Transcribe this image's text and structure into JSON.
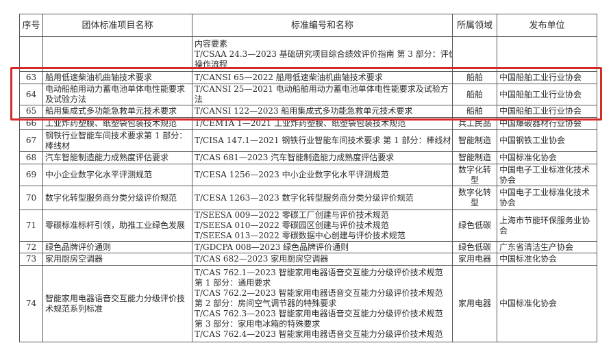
{
  "header": {
    "no": "序号",
    "project": "团体标准项目名称",
    "standard": "标准编号和名称",
    "field": "所属领域",
    "publisher": "发布单位"
  },
  "rows": [
    {
      "no": "",
      "project": "",
      "standards": [
        "内容要素",
        "T/CSAA 24.3—2023 基础研究项目综合绩效评价指南 第 3 部分：评价",
        "操作流程"
      ],
      "field": "",
      "publisher": ""
    },
    {
      "no": "63",
      "project": "船用低速柴油机曲轴技术要求",
      "standards": [
        "T/CANSI 65—2022 船用低速柴油机曲轴技术要求"
      ],
      "field": "船舶",
      "publisher": "中国船舶工业行业协会"
    },
    {
      "no": "64",
      "project": "电动船舶用动力蓄电池单体电性能要求及试验方法",
      "standards": [
        "T/CANSI 25—2021 电动船舶用动力蓄电池单体电性能要求及试验方",
        "法"
      ],
      "field": "船舶",
      "publisher": "中国船舶工业行业协会"
    },
    {
      "no": "65",
      "project": "船用集成式多功能急救单元技术要求",
      "standards": [
        "T/CANSI 122—2023 船用集成式多功能急救单元技术要求"
      ],
      "field": "船舶",
      "publisher": "中国船舶工业行业协会"
    },
    {
      "no": "66",
      "project": "工业炸药塑膜、纸塑袋包装技术规范",
      "standards": [
        "T/CEMTA 1—2021 工业炸药塑膜、纸塑袋包装技术规范"
      ],
      "field": "兵工民品",
      "publisher": "中国爆破器材行业协会"
    },
    {
      "no": "67",
      "project": "钢铁行业智能车间技术要求第 1 部分：棒线材",
      "standards": [
        "T/CISA 147.1—2021 钢铁行业智能车间技术要求 第 1 部分：棒线材"
      ],
      "field": "智能制造",
      "publisher": "中国钢铁工业协会"
    },
    {
      "no": "68",
      "project": "汽车智能制造能力成熟度评估要求",
      "standards": [
        "T/CAS 681—2023 汽车智能制造能力成熟度评估要求"
      ],
      "field": "智能制造",
      "publisher": "中国标准化协会"
    },
    {
      "no": "69",
      "project": "中小企业数字化水平评测规范",
      "standards": [
        "T/CESA 1256—2023 中小企业数字化水平评测规范"
      ],
      "field": "数字化转型",
      "publisher": "中国电子工业标准化技术协会"
    },
    {
      "no": "70",
      "project": "数字化转型服务商分类分级评价规范",
      "standards": [
        "T/CESA 1263—2023 数字化转型服务商分类分级评价规范"
      ],
      "field": "数字化转型",
      "publisher": "中国电子工业标准化技术协会"
    },
    {
      "no": "71",
      "project": "零碳标准标杆引领，助推工业绿色发展",
      "standards": [
        "T/SEESA 009—2022 零碳工厂创建与评价技术规范",
        "T/SEESA 010—2022 零碳园区创建与评价技术规范",
        "T/SEESA 013—2022 零碳数据中心创建与评价技术规范"
      ],
      "field": "绿色低碳",
      "publisher": "上海市节能环保服务业协会"
    },
    {
      "no": "72",
      "project": "绿色品牌评价通则",
      "standards": [
        "T/GDCPA 008—2023 绿色品牌评价通则"
      ],
      "field": "绿色低碳",
      "publisher": "广东省清洁生产协会"
    },
    {
      "no": "73",
      "project": "家用厨房空调器",
      "standards": [
        "T/CAS 682—2023 家用厨房空调器"
      ],
      "field": "家用电器",
      "publisher": "中国标准化协会"
    },
    {
      "no": "74",
      "project": "智能家用电器语音交互能力分级评价技术规范系列标准",
      "standards": [
        "T/CAS 762.1—2023 智能家用电器语音交互能力分级评价技术规范",
        "第 1 部分：通用要求",
        "T/CAS 762.2—2023 智能家用电器语音交互能力分级评价技术规范",
        "第 2 部分：房间空气调节器的特殊要求",
        "T/CAS 762.3—2023 智能家用电器语音交互能力分级评价技术规范",
        "第 3 部分：家用电冰箱的特殊要求",
        "T/CAS 762.4—2023 智能家用电器语音交互能力分级评价技术规范"
      ],
      "field": "家用电器",
      "publisher": "中国标准化协会"
    }
  ],
  "highlight_color": "#d42a2a"
}
